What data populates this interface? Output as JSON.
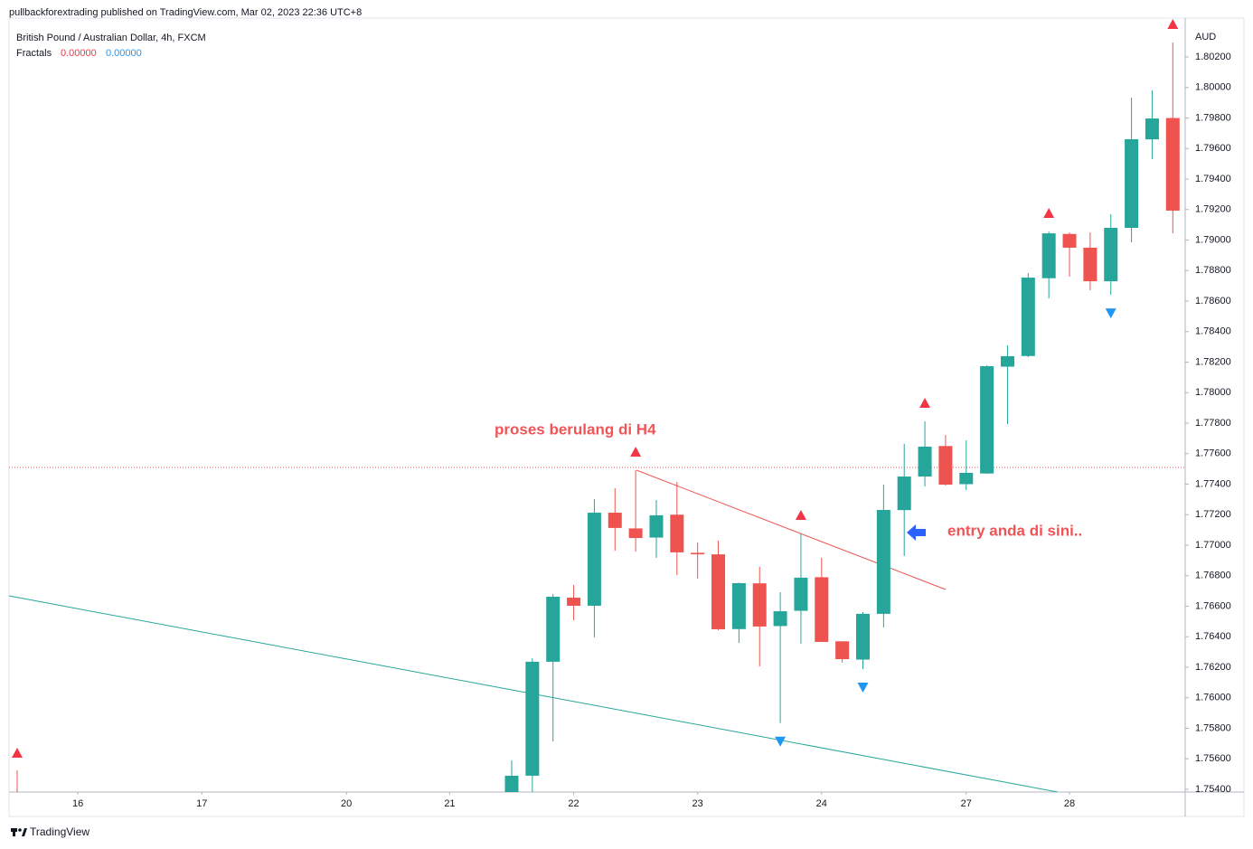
{
  "header": "pullbackforextrading published on TradingView.com, Mar 02, 2023 22:36 UTC+8",
  "footer": "TradingView",
  "chart_data": {
    "type": "candlestick",
    "title": "British Pound / Australian Dollar, 4h, FXCM",
    "currency": "AUD",
    "up_color": "#26a69a",
    "down_color": "#ef5350",
    "open": [
      1.7536,
      1.75489,
      1.76236,
      1.76656,
      1.76603,
      1.77213,
      1.7711,
      1.7705,
      1.772,
      1.7695,
      1.7694,
      1.7645,
      1.7675,
      1.7647,
      1.7657,
      1.7679,
      1.7637,
      1.7625,
      1.7655,
      1.7723,
      1.7745,
      1.7765,
      1.774,
      1.7747,
      1.7817,
      1.7824,
      1.7875,
      1.7904,
      1.7895,
      1.7873,
      1.7908,
      1.7966,
      1.798
    ],
    "high": [
      1.7559,
      1.7626,
      1.7668,
      1.76739,
      1.77302,
      1.77373,
      1.77492,
      1.77296,
      1.77415,
      1.77018,
      1.7703,
      1.76755,
      1.76858,
      1.76692,
      1.77077,
      1.76917,
      1.7637,
      1.76561,
      1.77397,
      1.77664,
      1.77812,
      1.77723,
      1.77687,
      1.78179,
      1.7831,
      1.78784,
      1.79056,
      1.7905,
      1.7905,
      1.79169,
      1.79933,
      1.79981,
      1.80295
    ],
    "low": [
      1.7532,
      1.7538,
      1.75714,
      1.76508,
      1.76396,
      1.76964,
      1.76958,
      1.76917,
      1.76804,
      1.76781,
      1.76443,
      1.7636,
      1.76206,
      1.75834,
      1.76354,
      1.76366,
      1.7623,
      1.76188,
      1.76461,
      1.76929,
      1.77385,
      1.77391,
      1.77361,
      1.77468,
      1.77794,
      1.78233,
      1.78618,
      1.7876,
      1.78671,
      1.78641,
      1.78985,
      1.7953,
      1.79044
    ],
    "close": [
      1.75489,
      1.76236,
      1.76662,
      1.76603,
      1.77213,
      1.77113,
      1.77047,
      1.77196,
      1.76953,
      1.7694,
      1.76449,
      1.76751,
      1.76467,
      1.76567,
      1.76787,
      1.76366,
      1.76253,
      1.7655,
      1.77231,
      1.7745,
      1.77646,
      1.77397,
      1.77474,
      1.78173,
      1.78239,
      1.78754,
      1.79044,
      1.7895,
      1.7873,
      1.7908,
      1.79661,
      1.79797,
      1.79193
    ],
    "indicator": {
      "name": "Fractals",
      "labels": [
        "0.00000",
        "0.00000"
      ],
      "up_color": "#f23645",
      "down_color": "#2196f3",
      "up": [
        null,
        null,
        null,
        null,
        null,
        null,
        1.77492,
        null,
        null,
        null,
        null,
        null,
        null,
        null,
        1.77077,
        null,
        null,
        null,
        null,
        null,
        1.77812,
        null,
        null,
        null,
        null,
        null,
        1.79056,
        null,
        null,
        null,
        null,
        null,
        1.80295
      ],
      "down": [
        null,
        null,
        null,
        null,
        null,
        null,
        null,
        null,
        null,
        null,
        null,
        null,
        null,
        1.75834,
        null,
        null,
        null,
        1.76188,
        null,
        null,
        null,
        null,
        null,
        null,
        null,
        null,
        null,
        null,
        null,
        1.78641,
        null,
        null,
        null
      ]
    },
    "annotations": [
      "proses berulang di H4",
      "entry anda di sini.."
    ],
    "xlim": [
      -24.33,
      32.6
    ],
    "xticks": [
      {
        "value": -21,
        "label": "16"
      },
      {
        "value": -15,
        "label": "17"
      },
      {
        "value": -8,
        "label": "20"
      },
      {
        "value": -3,
        "label": "21"
      },
      {
        "value": 3,
        "label": "22"
      },
      {
        "value": 9,
        "label": "23"
      },
      {
        "value": 15,
        "label": "24"
      },
      {
        "value": 22,
        "label": "27"
      },
      {
        "value": 27,
        "label": "28"
      }
    ],
    "ylim": [
      1.75382,
      1.80455
    ],
    "yticks": [
      {
        "value": 1.754,
        "label": "1.75400"
      },
      {
        "value": 1.756,
        "label": "1.75600"
      },
      {
        "value": 1.758,
        "label": "1.75800"
      },
      {
        "value": 1.76,
        "label": "1.76000"
      },
      {
        "value": 1.762,
        "label": "1.76200"
      },
      {
        "value": 1.764,
        "label": "1.76400"
      },
      {
        "value": 1.766,
        "label": "1.76600"
      },
      {
        "value": 1.768,
        "label": "1.76800"
      },
      {
        "value": 1.77,
        "label": "1.77000"
      },
      {
        "value": 1.772,
        "label": "1.77200"
      },
      {
        "value": 1.774,
        "label": "1.77400"
      },
      {
        "value": 1.776,
        "label": "1.77600"
      },
      {
        "value": 1.778,
        "label": "1.77800"
      },
      {
        "value": 1.78,
        "label": "1.78000"
      },
      {
        "value": 1.782,
        "label": "1.78200"
      },
      {
        "value": 1.784,
        "label": "1.78400"
      },
      {
        "value": 1.786,
        "label": "1.78600"
      },
      {
        "value": 1.788,
        "label": "1.78800"
      },
      {
        "value": 1.79,
        "label": "1.79000"
      },
      {
        "value": 1.792,
        "label": "1.79200"
      },
      {
        "value": 1.794,
        "label": "1.79400"
      },
      {
        "value": 1.796,
        "label": "1.79600"
      },
      {
        "value": 1.798,
        "label": "1.79800"
      },
      {
        "value": 1.8,
        "label": "1.80000"
      },
      {
        "value": 1.802,
        "label": "1.80200"
      }
    ],
    "grid": false
  }
}
